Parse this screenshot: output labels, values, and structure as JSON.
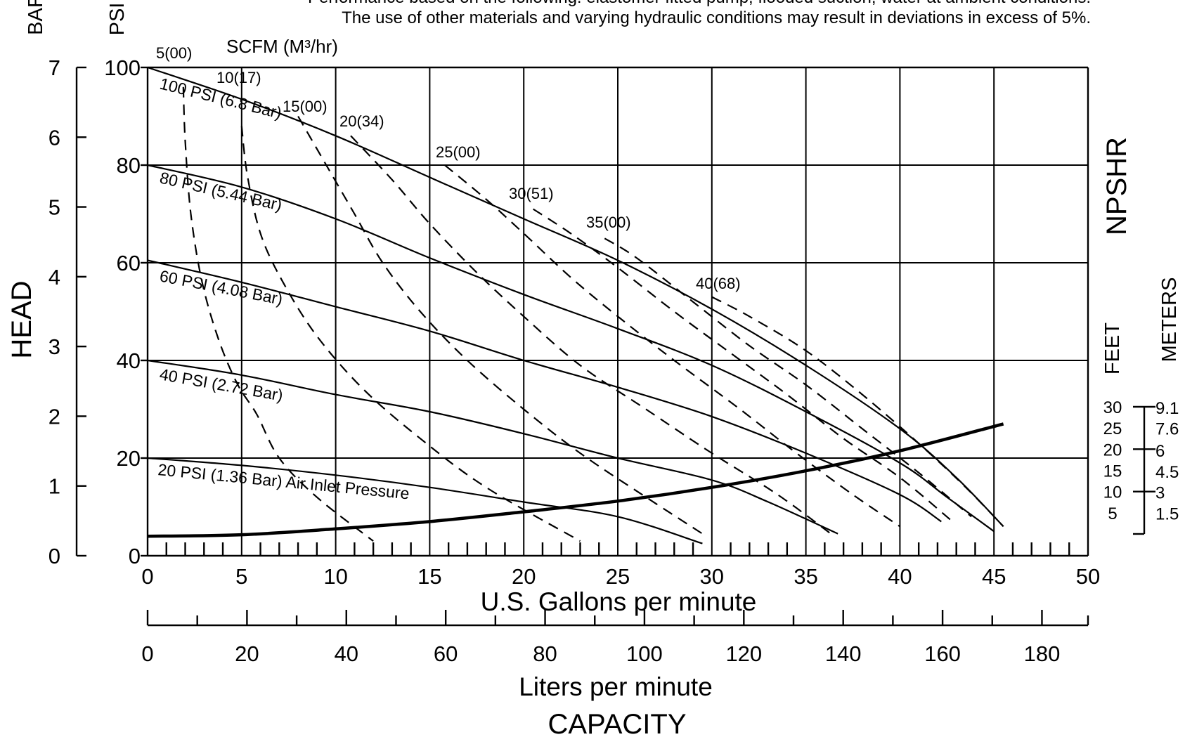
{
  "header": {
    "note_line1": "Performance based on the following: elastomer fitted pump, flooded suction, water at ambient conditions.",
    "note_line2": "The use of other materials and varying hydraulic conditions may result in deviations in excess of 5%."
  },
  "chart_data": {
    "type": "line",
    "xlabel": "U.S. Gallons per minute",
    "secondary_xlabel": "Liters per minute",
    "capacity_label": "CAPACITY",
    "ylabel": "HEAD",
    "bar_axis_label": "BAR",
    "psi_axis_label": "PSI",
    "scfm_label": "SCFM (M³/hr)",
    "npshr_label": "NPSHR",
    "feet_label": "FEET",
    "meters_label": "METERS",
    "xlim": [
      0,
      50
    ],
    "psi_lim": [
      0,
      100
    ],
    "bar_lim": [
      0,
      7
    ],
    "grid": true,
    "x_ticks": [
      "0",
      "5",
      "10",
      "15",
      "20",
      "25",
      "30",
      "35",
      "40",
      "45",
      "50"
    ],
    "lpm_ticks": [
      "0",
      "20",
      "40",
      "60",
      "80",
      "100",
      "120",
      "140",
      "160",
      "180"
    ],
    "psi_ticks": [
      "0",
      "20",
      "40",
      "60",
      "80",
      "100"
    ],
    "bar_ticks": [
      "0",
      "1",
      "2",
      "3",
      "4",
      "5",
      "6",
      "7"
    ],
    "npsh_feet_ticks": [
      "5",
      "10",
      "15",
      "20",
      "25",
      "30"
    ],
    "npsh_meter_ticks": [
      "1.5",
      "3",
      "4.5",
      "6",
      "7.6",
      "9.1"
    ],
    "air_pressure_series": [
      {
        "name": "100 PSI (6.8 Bar)",
        "points": [
          [
            0,
            100
          ],
          [
            5,
            93.5
          ],
          [
            10,
            86
          ],
          [
            15,
            77.5
          ],
          [
            20,
            69
          ],
          [
            25,
            60.5
          ],
          [
            30,
            50.5
          ],
          [
            35,
            39
          ],
          [
            40,
            26
          ],
          [
            43,
            16
          ],
          [
            45.5,
            6
          ]
        ]
      },
      {
        "name": "80 PSI (5.44 Bar)",
        "points": [
          [
            0,
            80
          ],
          [
            5,
            75.5
          ],
          [
            10,
            69
          ],
          [
            15,
            61
          ],
          [
            20,
            53.5
          ],
          [
            25,
            46.5
          ],
          [
            30,
            39
          ],
          [
            35,
            29.5
          ],
          [
            40,
            19
          ],
          [
            42.5,
            12
          ],
          [
            45,
            5
          ]
        ]
      },
      {
        "name": "60 PSI (4.08 Bar)",
        "points": [
          [
            0,
            60.5
          ],
          [
            5,
            56
          ],
          [
            10,
            51
          ],
          [
            15,
            46
          ],
          [
            20,
            40
          ],
          [
            25,
            34.5
          ],
          [
            30,
            28.5
          ],
          [
            35,
            21
          ],
          [
            40,
            12.5
          ],
          [
            42.2,
            7
          ]
        ]
      },
      {
        "name": "40 PSI (2.72 Bar)",
        "points": [
          [
            0,
            40
          ],
          [
            5,
            37
          ],
          [
            10,
            33
          ],
          [
            15,
            29.5
          ],
          [
            20,
            25
          ],
          [
            25,
            20
          ],
          [
            30,
            15.5
          ],
          [
            33,
            11
          ],
          [
            36.7,
            4.5
          ]
        ]
      },
      {
        "name": "20 PSI (1.36 Bar) Air Inlet Pressure",
        "points": [
          [
            0,
            20
          ],
          [
            5,
            18.5
          ],
          [
            10,
            16.5
          ],
          [
            15,
            14
          ],
          [
            20,
            11
          ],
          [
            25,
            8
          ],
          [
            29.5,
            2.5
          ]
        ]
      }
    ],
    "air_consumption_series": [
      {
        "name": "5(00)",
        "points": [
          [
            1.9,
            96
          ],
          [
            2,
            85
          ],
          [
            2.3,
            70
          ],
          [
            2.9,
            56
          ],
          [
            3.8,
            44
          ],
          [
            4.8,
            35
          ],
          [
            5.8,
            29
          ],
          [
            7,
            20
          ],
          [
            9,
            12
          ],
          [
            12,
            3
          ]
        ]
      },
      {
        "name": "10(17)",
        "points": [
          [
            5,
            88
          ],
          [
            5.3,
            78
          ],
          [
            6,
            66
          ],
          [
            7.2,
            56
          ],
          [
            9,
            45
          ],
          [
            11.5,
            34
          ],
          [
            14.5,
            24
          ],
          [
            18,
            14
          ],
          [
            23,
            3
          ]
        ]
      },
      {
        "name": "15(00)",
        "points": [
          [
            8,
            90
          ],
          [
            9.5,
            80
          ],
          [
            11,
            70
          ],
          [
            12.5,
            60
          ],
          [
            14.5,
            50
          ],
          [
            17,
            40
          ],
          [
            20,
            30
          ],
          [
            23,
            21
          ],
          [
            26.5,
            12
          ],
          [
            29.5,
            4.5
          ]
        ]
      },
      {
        "name": "20(34)",
        "points": [
          [
            10.8,
            86
          ],
          [
            13,
            77
          ],
          [
            15,
            68
          ],
          [
            17.5,
            58
          ],
          [
            20,
            49
          ],
          [
            23,
            39
          ],
          [
            26.5,
            30
          ],
          [
            30,
            21
          ],
          [
            33.5,
            12.5
          ],
          [
            36.5,
            4
          ]
        ]
      },
      {
        "name": "25(00)",
        "points": [
          [
            15.8,
            80
          ],
          [
            18,
            73
          ],
          [
            20,
            66
          ],
          [
            22.5,
            57
          ],
          [
            25,
            49
          ],
          [
            28,
            40
          ],
          [
            31.5,
            30
          ],
          [
            34.5,
            21
          ],
          [
            37.5,
            12.5
          ],
          [
            40,
            6
          ]
        ]
      },
      {
        "name": "30(51)",
        "points": [
          [
            20.5,
            71
          ],
          [
            22.5,
            66
          ],
          [
            25,
            59
          ],
          [
            28,
            50
          ],
          [
            31,
            41.5
          ],
          [
            34,
            33
          ],
          [
            37,
            24
          ],
          [
            40,
            16
          ],
          [
            42.8,
            7
          ]
        ]
      },
      {
        "name": "35(00)",
        "points": [
          [
            24.3,
            65
          ],
          [
            26,
            61
          ],
          [
            29,
            52
          ],
          [
            32,
            43
          ],
          [
            35,
            35
          ],
          [
            38,
            26
          ],
          [
            41,
            17
          ],
          [
            43.8,
            8
          ]
        ]
      },
      {
        "name": "40(68)",
        "points": [
          [
            30,
            53
          ],
          [
            32,
            49
          ],
          [
            35,
            42
          ],
          [
            38,
            33
          ],
          [
            41,
            23
          ],
          [
            43.5,
            14
          ],
          [
            45.5,
            6
          ]
        ]
      }
    ],
    "npshr_curve": {
      "points": [
        [
          0,
          4
        ],
        [
          5,
          4.3
        ],
        [
          10,
          5.5
        ],
        [
          15,
          7
        ],
        [
          20,
          9
        ],
        [
          25,
          11.2
        ],
        [
          30,
          14
        ],
        [
          35,
          17.4
        ],
        [
          40,
          21.5
        ],
        [
          45.5,
          27
        ]
      ]
    }
  }
}
